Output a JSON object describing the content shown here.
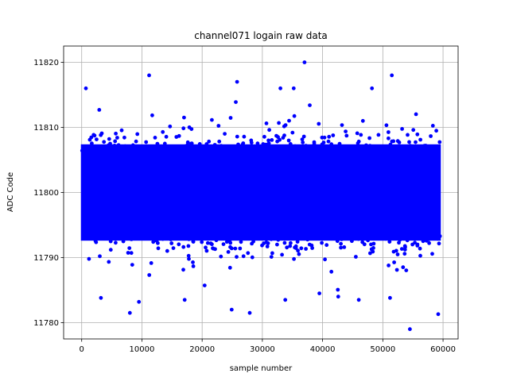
{
  "chart_data": {
    "type": "scatter",
    "title": "channel071 logain raw data",
    "xlabel": "sample number",
    "ylabel": "ADC Code",
    "xlim": [
      -3000,
      62500
    ],
    "ylim": [
      11777.5,
      11822.5
    ],
    "xticks": [
      0,
      10000,
      20000,
      30000,
      40000,
      50000,
      60000
    ],
    "xtick_labels": [
      "0",
      "10000",
      "20000",
      "30000",
      "40000",
      "50000",
      "60000"
    ],
    "yticks": [
      11780,
      11790,
      11800,
      11810,
      11820
    ],
    "ytick_labels": [
      "11780",
      "11790",
      "11800",
      "11810",
      "11820"
    ],
    "grid": true,
    "marker_color": "#0000ff",
    "series": [
      {
        "n_points": 60000,
        "x_range": [
          0,
          59500
        ],
        "center": 11800,
        "spread_std": 3.7,
        "outliers": [
          {
            "x": 37000,
            "y": 11820
          },
          {
            "x": 11200,
            "y": 11818
          },
          {
            "x": 51500,
            "y": 11818
          },
          {
            "x": 700,
            "y": 11816
          },
          {
            "x": 25800,
            "y": 11817
          },
          {
            "x": 35200,
            "y": 11816
          },
          {
            "x": 48200,
            "y": 11816
          },
          {
            "x": 33000,
            "y": 11816
          },
          {
            "x": 8000,
            "y": 11781.5
          },
          {
            "x": 27900,
            "y": 11781.5
          },
          {
            "x": 54500,
            "y": 11779
          },
          {
            "x": 59200,
            "y": 11781.3
          },
          {
            "x": 24900,
            "y": 11782
          },
          {
            "x": 3200,
            "y": 11783.8
          },
          {
            "x": 46000,
            "y": 11783.5
          },
          {
            "x": 33800,
            "y": 11783.5
          },
          {
            "x": 42600,
            "y": 11784
          },
          {
            "x": 51200,
            "y": 11783.8
          },
          {
            "x": 17100,
            "y": 11783.5
          },
          {
            "x": 9500,
            "y": 11783.2
          }
        ]
      }
    ]
  }
}
